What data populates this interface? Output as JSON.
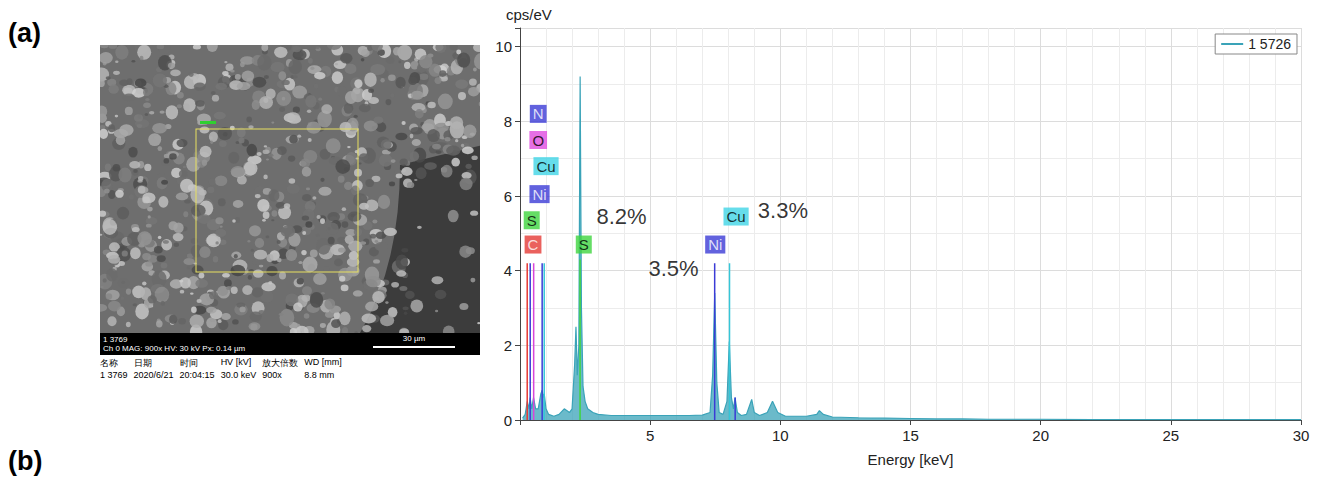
{
  "panel_labels": [
    "(a)",
    "(b)"
  ],
  "sem_image": {
    "info_lines": [
      "1 3769",
      "Ch 0  MAG: 900x  HV: 30 kV  Px: 0.14 µm"
    ],
    "scale_bar": "30 µm",
    "table": {
      "header": [
        "名称",
        "日期",
        "时间",
        "HV [kV]",
        "放大倍数",
        "WD [mm]"
      ],
      "row": [
        "1 3769",
        "2020/6/21",
        "20:04:15",
        "30.0 keV",
        "900x",
        "8.8 mm"
      ]
    }
  },
  "chart_data": {
    "type": "line",
    "y_title": "cps/eV",
    "x_title": "Energy [keV]",
    "x": [
      0.1,
      0.2,
      0.28,
      0.35,
      0.39,
      0.45,
      0.52,
      0.6,
      0.7,
      0.8,
      0.85,
      0.9,
      0.93,
      1.0,
      1.1,
      1.3,
      1.5,
      1.7,
      1.9,
      2.0,
      2.1,
      2.15,
      2.2,
      2.26,
      2.31,
      2.36,
      2.42,
      2.5,
      2.6,
      2.8,
      3.0,
      3.5,
      4.0,
      4.5,
      5.0,
      5.5,
      6.0,
      6.5,
      7.0,
      7.3,
      7.4,
      7.48,
      7.56,
      7.65,
      7.8,
      7.95,
      8.04,
      8.12,
      8.2,
      8.26,
      8.35,
      8.5,
      8.7,
      8.9,
      9.0,
      9.2,
      9.5,
      9.7,
      9.9,
      10.2,
      10.6,
      11.0,
      11.4,
      11.5,
      11.65,
      12,
      13,
      14,
      15,
      16,
      17,
      18,
      19,
      20,
      22,
      25,
      28,
      30
    ],
    "series": [
      {
        "name": "1 5726",
        "color": "#3aa3b8",
        "values": [
          0.05,
          0.15,
          0.5,
          0.3,
          0.6,
          0.3,
          0.6,
          0.3,
          0.3,
          0.7,
          0.8,
          0.6,
          0.7,
          0.3,
          0.15,
          0.1,
          0.15,
          0.3,
          0.2,
          0.3,
          1.5,
          2.5,
          1.2,
          2.0,
          9.2,
          3.0,
          0.9,
          0.5,
          0.3,
          0.2,
          0.15,
          0.12,
          0.12,
          0.12,
          0.12,
          0.12,
          0.12,
          0.12,
          0.13,
          0.2,
          1.2,
          3.4,
          1.0,
          0.2,
          0.15,
          0.5,
          2.1,
          0.6,
          0.3,
          0.6,
          0.2,
          0.12,
          0.15,
          0.55,
          0.2,
          0.12,
          0.2,
          0.5,
          0.2,
          0.1,
          0.1,
          0.1,
          0.15,
          0.25,
          0.15,
          0.08,
          0.06,
          0.05,
          0.04,
          0.03,
          0.03,
          0.02,
          0.02,
          0.02,
          0.01,
          0.01,
          0.01,
          0.01
        ]
      }
    ],
    "xlim": [
      0,
      30
    ],
    "xticks": [
      5,
      10,
      15,
      20,
      25,
      30
    ],
    "ylim": [
      0,
      10.5
    ],
    "yticks": [
      0,
      2,
      4,
      6,
      8,
      10
    ],
    "grid": true,
    "legend": "upper right",
    "element_lines": [
      {
        "x": 0.277,
        "y": 4.2,
        "color": "#e53935"
      },
      {
        "x": 0.392,
        "y": 4.2,
        "color": "#3b3bd6"
      },
      {
        "x": 0.525,
        "y": 4.2,
        "color": "#d946d9"
      },
      {
        "x": 0.851,
        "y": 4.2,
        "color": "#3b3bd6"
      },
      {
        "x": 0.93,
        "y": 4.2,
        "color": "#35c6d8"
      },
      {
        "x": 2.307,
        "y": 4.3,
        "color": "#3fd43f"
      },
      {
        "x": 7.478,
        "y": 4.2,
        "color": "#3b3bd6"
      },
      {
        "x": 8.048,
        "y": 4.2,
        "color": "#35c6d8"
      },
      {
        "x": 8.265,
        "y": 0.6,
        "color": "#3b3bd6"
      }
    ],
    "element_labels": [
      {
        "text": "N",
        "x": 0.7,
        "y": 8.2,
        "color": "#3b3bd6"
      },
      {
        "text": "O",
        "x": 0.7,
        "y": 7.5,
        "color": "#e04be0"
      },
      {
        "text": "Cu",
        "x": 1.0,
        "y": 6.8,
        "color": "#40d4e6"
      },
      {
        "text": "Ni",
        "x": 0.75,
        "y": 6.05,
        "color": "#3b3bd6"
      },
      {
        "text": "S",
        "x": 0.45,
        "y": 5.35,
        "color": "#3fd43f"
      },
      {
        "text": "C",
        "x": 0.5,
        "y": 4.7,
        "color": "#e53935"
      },
      {
        "text": "S",
        "x": 2.45,
        "y": 4.7,
        "color": "#3fd43f"
      },
      {
        "text": "Ni",
        "x": 7.5,
        "y": 4.7,
        "color": "#3b3bd6"
      },
      {
        "text": "Cu",
        "x": 8.3,
        "y": 5.45,
        "color": "#40d4e6"
      }
    ],
    "annotations": [
      {
        "text": "8.2%",
        "x": 3.9,
        "y": 5.45
      },
      {
        "text": "3.5%",
        "x": 5.9,
        "y": 4.05
      },
      {
        "text": "3.3%",
        "x": 10.1,
        "y": 5.6
      }
    ]
  }
}
